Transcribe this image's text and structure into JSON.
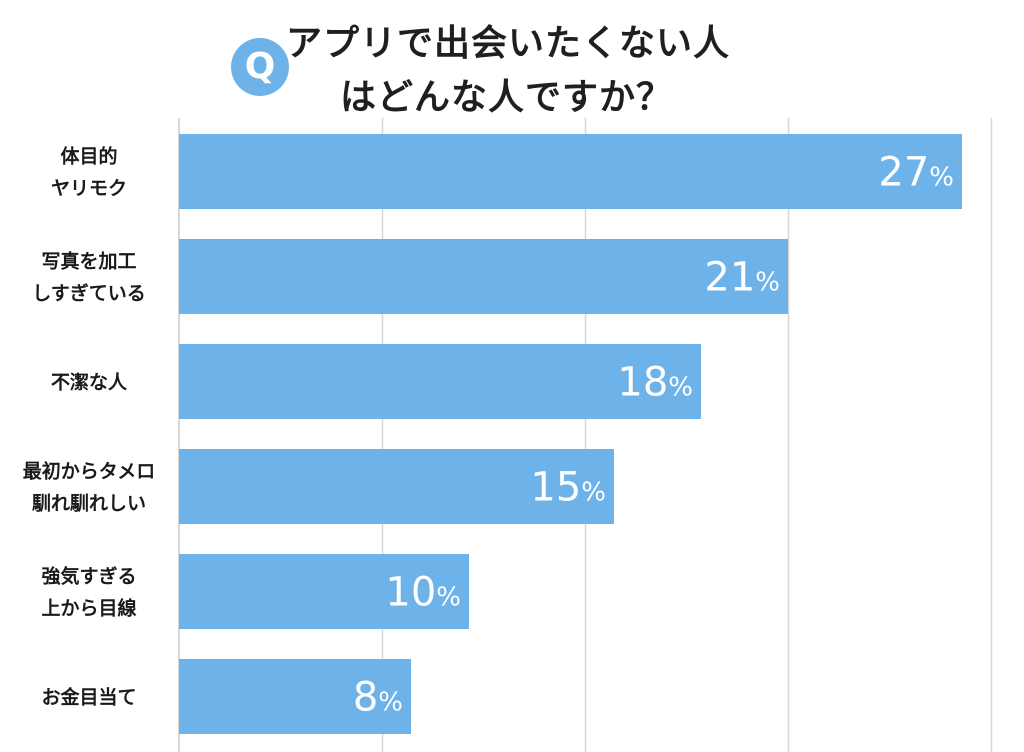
{
  "title": {
    "badge": "Q",
    "line1": "アプリで出会いたくない人",
    "line2": "はどんな人ですか？"
  },
  "colors": {
    "bar": "#6db3ea",
    "grid": "#d7d7d7",
    "badge": "#6db3ea"
  },
  "chart_data": {
    "type": "bar",
    "orientation": "horizontal",
    "categories": [
      [
        "体目的",
        "ヤリモク"
      ],
      [
        "写真を加工",
        "しすぎている"
      ],
      [
        "不潔な人"
      ],
      [
        "最初からタメロ",
        "馴れ馴れしい"
      ],
      [
        "強気すぎる",
        "上から目線"
      ],
      [
        "お金目当て"
      ]
    ],
    "values": [
      27,
      21,
      18,
      15,
      10,
      8
    ],
    "value_labels": [
      "27",
      "21",
      "18",
      "15",
      "10",
      "8"
    ],
    "unit": "%",
    "xlim": [
      0,
      28
    ],
    "grid": true
  }
}
